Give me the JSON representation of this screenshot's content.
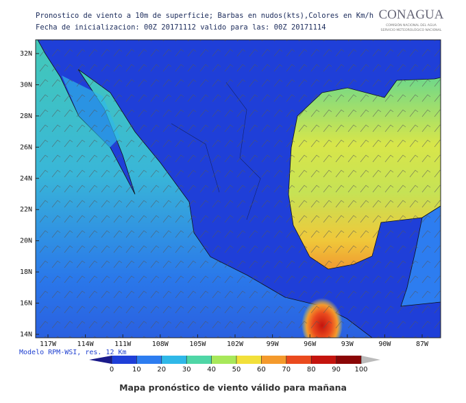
{
  "header": {
    "title_line1": "Pronostico de viento a 10m de superficie;  Barbas en nudos(kts),Colores en Km/h",
    "title_line2": "Fecha de inicializacion:  00Z 20171112      valido para las: 00Z  20171114"
  },
  "logo": {
    "name": "CONAGUA",
    "line1": "COMISIÓN NACIONAL DEL AGUA",
    "line2": "SERVICIO METEOROLÓGICO NACIONAL"
  },
  "map": {
    "lat_labels": [
      "32N",
      "30N",
      "28N",
      "26N",
      "24N",
      "22N",
      "20N",
      "18N",
      "16N",
      "14N"
    ],
    "lon_labels": [
      "117W",
      "114W",
      "111W",
      "108W",
      "105W",
      "102W",
      "99W",
      "96W",
      "93W",
      "90W",
      "87W"
    ],
    "model_label": "Modelo RPM-WSI, res. 12 Km"
  },
  "colorbar": {
    "ticks": [
      0,
      10,
      20,
      30,
      40,
      50,
      60,
      70,
      80,
      90,
      100
    ],
    "colors": [
      "#1f3fd8",
      "#2d7df0",
      "#2fb8e8",
      "#4fd6a6",
      "#a8e85a",
      "#f2e03a",
      "#f49a2c",
      "#ea4a1e",
      "#c4140e",
      "#8a0606"
    ]
  },
  "caption": "Mapa pronóstico de viento válido para mañana"
}
